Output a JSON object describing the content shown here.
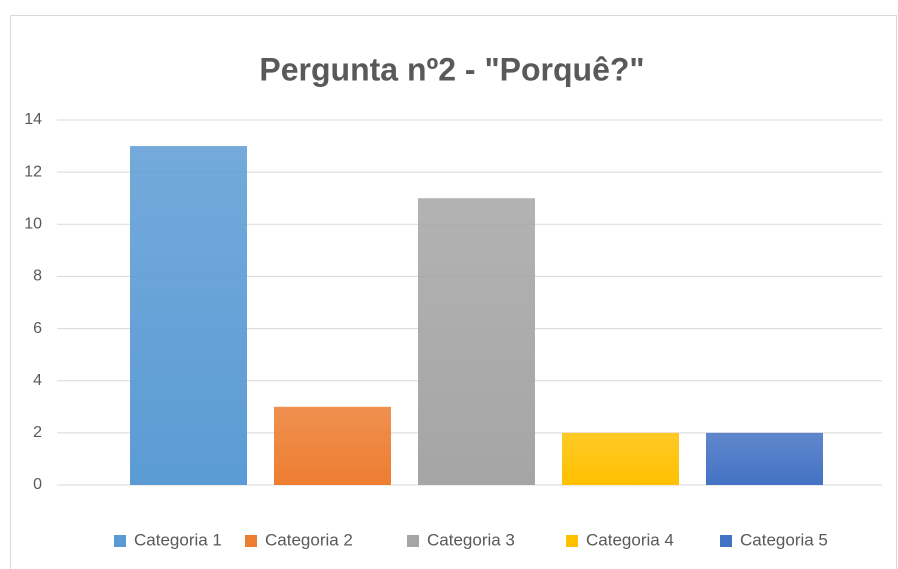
{
  "chart_data": {
    "type": "bar",
    "title": "Pergunta nº2 - \"Porquê?\"",
    "categories": [
      "Categoria 1",
      "Categoria 2",
      "Categoria 3",
      "Categoria 4",
      "Categoria 5"
    ],
    "values": [
      13,
      3,
      11,
      2,
      2
    ],
    "colors": [
      "#5b9bd5",
      "#ed7d31",
      "#a5a5a5",
      "#ffc000",
      "#4472c4"
    ],
    "ylim": [
      0,
      14
    ],
    "yticks": [
      0,
      2,
      4,
      6,
      8,
      10,
      12,
      14
    ],
    "grid": true,
    "legend": "bottom"
  }
}
